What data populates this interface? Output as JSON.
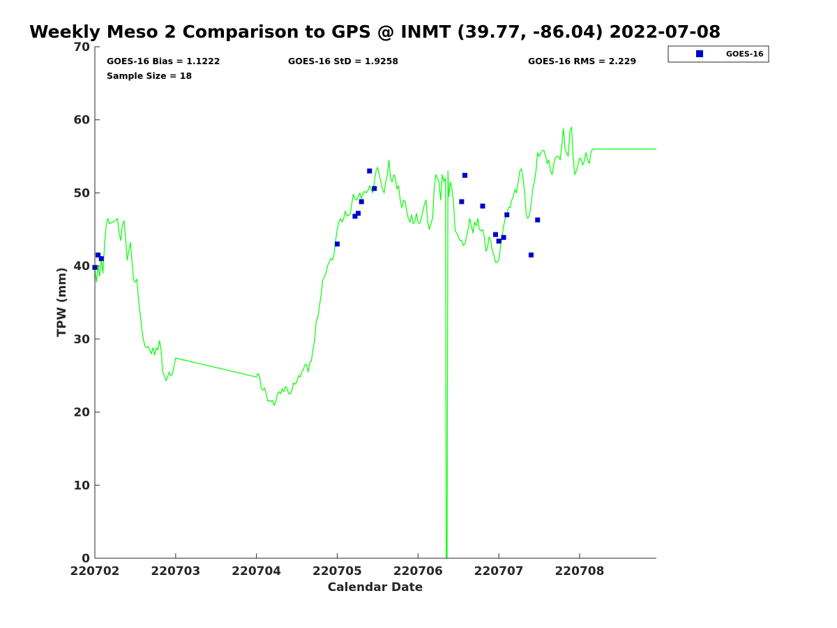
{
  "chart_data": {
    "type": "line+scatter",
    "title": "Weekly Meso 2 Comparison to GPS @ INMT (39.77, -86.04) 2022-07-08",
    "xlabel": "Calendar Date",
    "ylabel": "TPW (mm)",
    "xlim": [
      0,
      6.95
    ],
    "ylim": [
      0,
      70
    ],
    "grid": false,
    "legend_position": "top-right-outside",
    "x_tick_labels": [
      "220702",
      "220703",
      "220704",
      "220705",
      "220706",
      "220707",
      "220708"
    ],
    "x_tick_values": [
      0,
      1,
      2,
      3,
      4,
      5,
      6
    ],
    "y_tick_values": [
      0,
      10,
      20,
      30,
      40,
      50,
      60,
      70
    ],
    "stats": {
      "bias": "GOES-16 Bias = 1.1222",
      "std": "GOES-16 StD = 1.9258",
      "rms": "GOES-16 RMS = 2.229",
      "sample": "Sample Size = 18"
    },
    "series": [
      {
        "name": "GPS",
        "kind": "line",
        "color": "#00ff00",
        "points": [
          [
            0.0,
            39.5
          ],
          [
            0.02,
            37.8
          ],
          [
            0.04,
            40.0
          ],
          [
            0.06,
            38.6
          ],
          [
            0.08,
            41.0
          ],
          [
            0.1,
            39.0
          ],
          [
            0.12,
            43.0
          ],
          [
            0.14,
            45.5
          ],
          [
            0.16,
            46.5
          ],
          [
            0.18,
            45.8
          ],
          [
            0.22,
            46.0
          ],
          [
            0.26,
            46.3
          ],
          [
            0.28,
            46.5
          ],
          [
            0.3,
            44.5
          ],
          [
            0.32,
            43.5
          ],
          [
            0.34,
            45.5
          ],
          [
            0.36,
            46.2
          ],
          [
            0.38,
            44.0
          ],
          [
            0.4,
            40.8
          ],
          [
            0.42,
            42.0
          ],
          [
            0.44,
            43.2
          ],
          [
            0.46,
            40.5
          ],
          [
            0.48,
            38.0
          ],
          [
            0.5,
            37.8
          ],
          [
            0.52,
            38.2
          ],
          [
            0.54,
            35.5
          ],
          [
            0.56,
            33.5
          ],
          [
            0.58,
            31.5
          ],
          [
            0.6,
            30.0
          ],
          [
            0.62,
            29.0
          ],
          [
            0.64,
            28.8
          ],
          [
            0.66,
            29.0
          ],
          [
            0.68,
            28.5
          ],
          [
            0.7,
            28.0
          ],
          [
            0.72,
            28.8
          ],
          [
            0.74,
            27.8
          ],
          [
            0.76,
            28.8
          ],
          [
            0.78,
            28.5
          ],
          [
            0.8,
            29.8
          ],
          [
            0.82,
            28.5
          ],
          [
            0.84,
            25.5
          ],
          [
            0.86,
            25.0
          ],
          [
            0.88,
            24.3
          ],
          [
            0.9,
            24.8
          ],
          [
            0.92,
            25.5
          ],
          [
            0.94,
            25.0
          ],
          [
            0.96,
            25.2
          ],
          [
            1.0,
            27.4
          ],
          [
            2.0,
            24.8
          ],
          [
            2.02,
            25.3
          ],
          [
            2.04,
            24.8
          ],
          [
            2.06,
            23.3
          ],
          [
            2.08,
            23.0
          ],
          [
            2.1,
            23.3
          ],
          [
            2.12,
            22.5
          ],
          [
            2.14,
            21.5
          ],
          [
            2.16,
            21.6
          ],
          [
            2.18,
            21.4
          ],
          [
            2.2,
            21.6
          ],
          [
            2.22,
            20.9
          ],
          [
            2.24,
            21.5
          ],
          [
            2.26,
            22.5
          ],
          [
            2.28,
            22.8
          ],
          [
            2.3,
            22.5
          ],
          [
            2.32,
            23.2
          ],
          [
            2.34,
            22.8
          ],
          [
            2.36,
            23.5
          ],
          [
            2.38,
            23.2
          ],
          [
            2.4,
            22.5
          ],
          [
            2.42,
            22.5
          ],
          [
            2.44,
            23.0
          ],
          [
            2.46,
            24.0
          ],
          [
            2.48,
            23.8
          ],
          [
            2.5,
            24.2
          ],
          [
            2.52,
            25.0
          ],
          [
            2.54,
            24.8
          ],
          [
            2.56,
            25.5
          ],
          [
            2.58,
            25.8
          ],
          [
            2.6,
            26.5
          ],
          [
            2.62,
            26.5
          ],
          [
            2.64,
            25.5
          ],
          [
            2.66,
            26.8
          ],
          [
            2.68,
            27.0
          ],
          [
            2.7,
            28.5
          ],
          [
            2.72,
            30.0
          ],
          [
            2.74,
            32.5
          ],
          [
            2.76,
            33.0
          ],
          [
            2.78,
            34.5
          ],
          [
            2.8,
            36.0
          ],
          [
            2.82,
            38.0
          ],
          [
            2.84,
            38.5
          ],
          [
            2.86,
            39.0
          ],
          [
            2.88,
            40.0
          ],
          [
            2.9,
            40.5
          ],
          [
            2.92,
            41.0
          ],
          [
            2.94,
            40.8
          ],
          [
            2.96,
            41.5
          ],
          [
            2.98,
            43.5
          ],
          [
            3.0,
            45.0
          ],
          [
            3.02,
            46.0
          ],
          [
            3.04,
            46.5
          ],
          [
            3.06,
            46.0
          ],
          [
            3.08,
            46.5
          ],
          [
            3.1,
            47.5
          ],
          [
            3.12,
            46.8
          ],
          [
            3.14,
            47.0
          ],
          [
            3.16,
            47.0
          ],
          [
            3.18,
            48.5
          ],
          [
            3.2,
            49.8
          ],
          [
            3.22,
            49.2
          ],
          [
            3.24,
            49.0
          ],
          [
            3.26,
            49.5
          ],
          [
            3.28,
            50.0
          ],
          [
            3.3,
            49.2
          ],
          [
            3.32,
            50.0
          ],
          [
            3.34,
            50.2
          ],
          [
            3.36,
            50.0
          ],
          [
            3.38,
            50.3
          ],
          [
            3.4,
            51.0
          ],
          [
            3.42,
            50.5
          ],
          [
            3.44,
            50.0
          ],
          [
            3.46,
            51.5
          ],
          [
            3.48,
            53.0
          ],
          [
            3.5,
            53.5
          ],
          [
            3.52,
            52.5
          ],
          [
            3.54,
            51.5
          ],
          [
            3.56,
            50.5
          ],
          [
            3.58,
            50.0
          ],
          [
            3.6,
            51.5
          ],
          [
            3.62,
            52.5
          ],
          [
            3.64,
            54.5
          ],
          [
            3.66,
            52.0
          ],
          [
            3.68,
            51.5
          ],
          [
            3.7,
            52.5
          ],
          [
            3.72,
            52.0
          ],
          [
            3.74,
            50.5
          ],
          [
            3.76,
            51.0
          ],
          [
            3.78,
            49.0
          ],
          [
            3.8,
            48.0
          ],
          [
            3.82,
            49.0
          ],
          [
            3.84,
            48.8
          ],
          [
            3.86,
            47.5
          ],
          [
            3.88,
            46.5
          ],
          [
            3.9,
            46.0
          ],
          [
            3.92,
            47.0
          ],
          [
            3.94,
            45.8
          ],
          [
            3.96,
            46.0
          ],
          [
            3.98,
            47.2
          ],
          [
            4.0,
            46.0
          ],
          [
            4.02,
            45.8
          ],
          [
            4.04,
            46.5
          ],
          [
            4.06,
            47.5
          ],
          [
            4.08,
            48.5
          ],
          [
            4.1,
            49.0
          ],
          [
            4.12,
            46.0
          ],
          [
            4.14,
            45.0
          ],
          [
            4.16,
            45.8
          ],
          [
            4.18,
            46.5
          ],
          [
            4.2,
            50.5
          ],
          [
            4.22,
            52.5
          ],
          [
            4.24,
            52.0
          ],
          [
            4.26,
            51.5
          ],
          [
            4.28,
            49.0
          ],
          [
            4.3,
            52.5
          ],
          [
            4.32,
            51.5
          ],
          [
            4.34,
            52.0
          ],
          [
            4.35,
            0.0
          ],
          [
            4.36,
            0.0
          ],
          [
            4.37,
            53.0
          ],
          [
            4.38,
            49.5
          ],
          [
            4.4,
            51.5
          ],
          [
            4.42,
            50.5
          ],
          [
            4.44,
            48.5
          ],
          [
            4.46,
            44.8
          ],
          [
            4.48,
            44.5
          ],
          [
            4.5,
            44.0
          ],
          [
            4.52,
            43.5
          ],
          [
            4.54,
            43.5
          ],
          [
            4.56,
            42.8
          ],
          [
            4.58,
            43.0
          ],
          [
            4.6,
            44.0
          ],
          [
            4.62,
            45.0
          ],
          [
            4.64,
            46.5
          ],
          [
            4.66,
            45.5
          ],
          [
            4.68,
            44.5
          ],
          [
            4.7,
            46.0
          ],
          [
            4.72,
            45.5
          ],
          [
            4.74,
            46.5
          ],
          [
            4.76,
            45.0
          ],
          [
            4.78,
            44.8
          ],
          [
            4.8,
            45.0
          ],
          [
            4.82,
            44.0
          ],
          [
            4.84,
            42.0
          ],
          [
            4.86,
            42.5
          ],
          [
            4.88,
            44.0
          ],
          [
            4.9,
            43.5
          ],
          [
            4.92,
            42.0
          ],
          [
            4.94,
            41.5
          ],
          [
            4.96,
            40.5
          ],
          [
            4.98,
            40.5
          ],
          [
            5.0,
            40.8
          ],
          [
            5.02,
            42.5
          ],
          [
            5.04,
            44.0
          ],
          [
            5.06,
            45.5
          ],
          [
            5.08,
            46.5
          ],
          [
            5.1,
            47.0
          ],
          [
            5.12,
            48.0
          ],
          [
            5.14,
            48.0
          ],
          [
            5.16,
            49.0
          ],
          [
            5.18,
            49.5
          ],
          [
            5.2,
            50.5
          ],
          [
            5.22,
            50.0
          ],
          [
            5.24,
            51.5
          ],
          [
            5.26,
            53.0
          ],
          [
            5.28,
            53.3
          ],
          [
            5.3,
            52.0
          ],
          [
            5.32,
            50.0
          ],
          [
            5.34,
            47.0
          ],
          [
            5.36,
            46.5
          ],
          [
            5.38,
            47.0
          ],
          [
            5.4,
            48.5
          ],
          [
            5.42,
            50.5
          ],
          [
            5.44,
            51.5
          ],
          [
            5.46,
            53.0
          ],
          [
            5.48,
            55.5
          ],
          [
            5.5,
            55.0
          ],
          [
            5.52,
            55.5
          ],
          [
            5.54,
            55.8
          ],
          [
            5.56,
            55.8
          ],
          [
            5.58,
            55.0
          ],
          [
            5.6,
            54.0
          ],
          [
            5.62,
            54.5
          ],
          [
            5.64,
            53.0
          ],
          [
            5.66,
            52.5
          ],
          [
            5.68,
            54.0
          ],
          [
            5.7,
            54.8
          ],
          [
            5.72,
            55.0
          ],
          [
            5.74,
            55.0
          ],
          [
            5.76,
            54.5
          ],
          [
            5.78,
            56.5
          ],
          [
            5.8,
            58.8
          ],
          [
            5.82,
            56.0
          ],
          [
            5.84,
            55.5
          ],
          [
            5.86,
            55.0
          ],
          [
            5.88,
            58.5
          ],
          [
            5.9,
            59.0
          ],
          [
            5.92,
            55.0
          ],
          [
            5.94,
            52.5
          ],
          [
            5.96,
            53.0
          ],
          [
            5.98,
            53.8
          ],
          [
            6.0,
            54.8
          ],
          [
            6.02,
            54.5
          ],
          [
            6.04,
            53.8
          ],
          [
            6.06,
            54.5
          ],
          [
            6.08,
            55.5
          ],
          [
            6.1,
            54.5
          ],
          [
            6.12,
            54.0
          ],
          [
            6.14,
            55.5
          ],
          [
            6.16,
            56.0
          ],
          [
            6.95,
            56.0
          ]
        ]
      },
      {
        "name": "GOES-16",
        "kind": "scatter",
        "color": "#0000cd",
        "points": [
          [
            0.0,
            39.8
          ],
          [
            0.04,
            41.5
          ],
          [
            0.08,
            41.0
          ],
          [
            3.0,
            43.0
          ],
          [
            3.22,
            46.8
          ],
          [
            3.26,
            47.2
          ],
          [
            3.3,
            48.8
          ],
          [
            3.4,
            53.0
          ],
          [
            3.46,
            50.6
          ],
          [
            4.54,
            48.8
          ],
          [
            4.58,
            52.4
          ],
          [
            4.8,
            48.2
          ],
          [
            4.96,
            44.3
          ],
          [
            5.0,
            43.4
          ],
          [
            5.06,
            43.9
          ],
          [
            5.1,
            47.0
          ],
          [
            5.4,
            41.5
          ],
          [
            5.48,
            46.3
          ]
        ]
      }
    ]
  }
}
